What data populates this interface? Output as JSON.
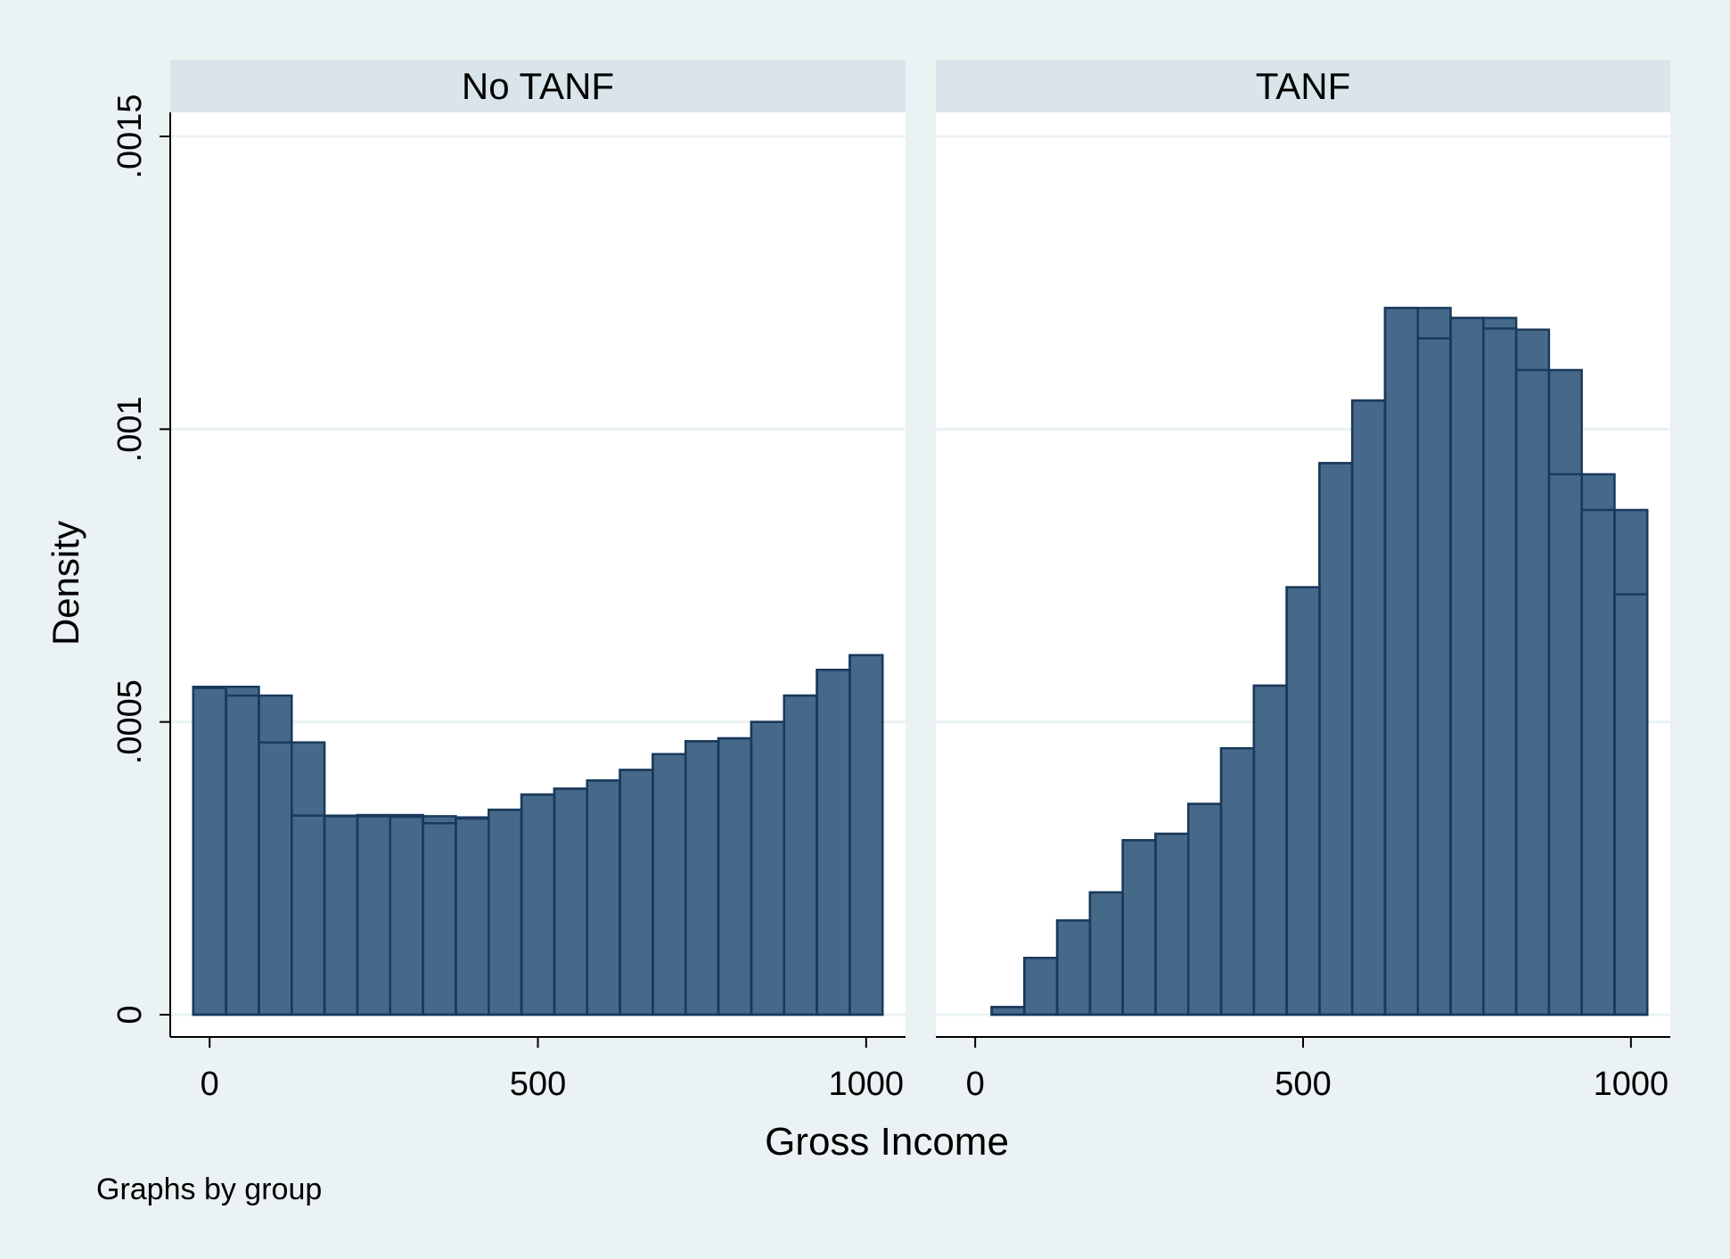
{
  "chart_data": {
    "type": "bar",
    "ylabel": "Density",
    "xlabel": "Gross Income",
    "note": "Graphs by group",
    "ylim": [
      0,
      0.0015
    ],
    "xlim": [
      -60,
      1060
    ],
    "y_ticks": [
      {
        "value": 0,
        "label": "0"
      },
      {
        "value": 0.0005,
        "label": ".0005"
      },
      {
        "value": 0.001,
        "label": ".001"
      },
      {
        "value": 0.0015,
        "label": ".0015"
      }
    ],
    "x_ticks": [
      {
        "value": 0,
        "label": "0"
      },
      {
        "value": 500,
        "label": "500"
      },
      {
        "value": 1000,
        "label": "1000"
      }
    ],
    "bin_width": 50,
    "grid": true,
    "colors": {
      "bar_fill": "#46698a",
      "bar_stroke": "#1a3a5c",
      "panel_header": "#d9e5ea",
      "background": "#eaf2f3"
    },
    "panels": [
      {
        "title": "No TANF",
        "bin_starts": [
          -25,
          25,
          75,
          125,
          175,
          225,
          275,
          325,
          375,
          425,
          475,
          525,
          575,
          625,
          675,
          725,
          775,
          825,
          875,
          925,
          975
        ],
        "series": [
          {
            "values": [
              0.00056,
              0.00056,
              0.000545,
              0.000465,
              0.00034,
              0.000341,
              0.000341,
              0.000339,
              0.000337,
              0.00035,
              0.000376,
              0.000386,
              0.0004,
              0.000418,
              0.000445,
              0.000467,
              0.000472,
              0.0005,
              0.000545,
              0.000589,
              0.000614
            ]
          },
          {
            "values": [
              0.000558,
              0.000545,
              0.000465,
              0.00034,
              0.000339,
              0.000339,
              0.000338,
              0.000327,
              0.000335,
              0.00035,
              0.000376,
              0.000386,
              0.0004,
              0.000418,
              0.000445,
              0.000467,
              0.000472,
              0.0005,
              0.000545,
              0.000589,
              0.000614
            ]
          }
        ]
      },
      {
        "title": "TANF",
        "bin_starts": [
          25,
          75,
          125,
          175,
          225,
          275,
          325,
          375,
          425,
          475,
          525,
          575,
          625,
          675,
          725,
          775,
          825,
          875,
          925,
          975
        ],
        "series": [
          {
            "values": [
              1.3e-05,
              9.7e-05,
              0.000161,
              0.000209,
              0.000298,
              0.000309,
              0.00036,
              0.000455,
              0.000562,
              0.00073,
              0.000942,
              0.001049,
              0.001207,
              0.001207,
              0.00119,
              0.00119,
              0.00117,
              0.001101,
              0.000923,
              0.000862
            ]
          },
          {
            "values": [
              1.3e-05,
              9.7e-05,
              0.000161,
              0.000209,
              0.000298,
              0.000309,
              0.00036,
              0.000455,
              0.000562,
              0.00073,
              0.000942,
              0.001049,
              0.001207,
              0.001155,
              0.00119,
              0.001172,
              0.001101,
              0.000923,
              0.000862,
              0.000718
            ]
          }
        ]
      }
    ]
  }
}
